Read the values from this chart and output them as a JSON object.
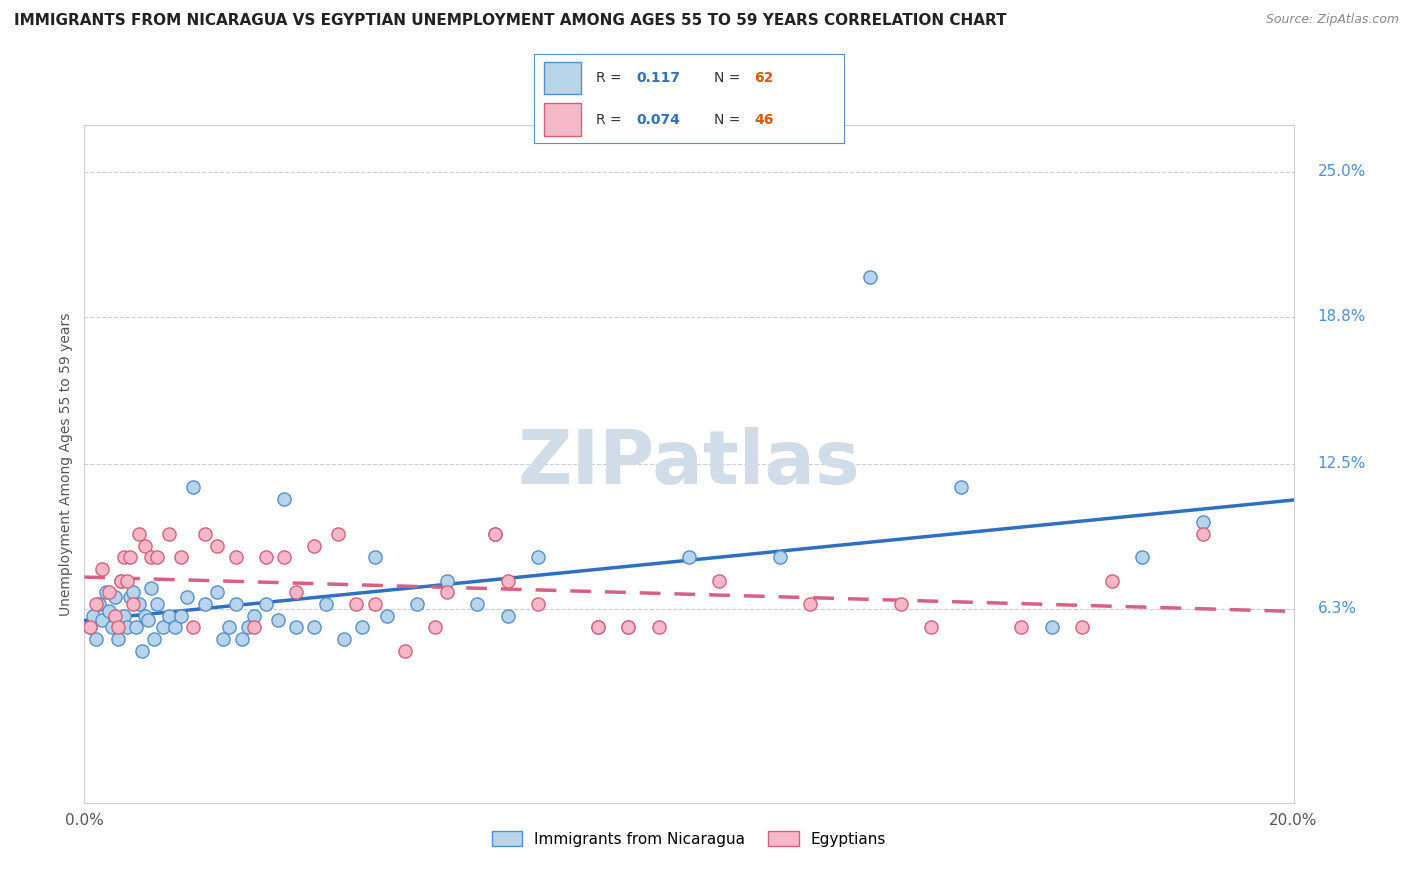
{
  "title": "IMMIGRANTS FROM NICARAGUA VS EGYPTIAN UNEMPLOYMENT AMONG AGES 55 TO 59 YEARS CORRELATION CHART",
  "source": "Source: ZipAtlas.com",
  "ylabel": "Unemployment Among Ages 55 to 59 years",
  "xlim": [
    0.0,
    20.0
  ],
  "ylim": [
    -2.0,
    27.0
  ],
  "yticks": [
    6.3,
    12.5,
    18.8,
    25.0
  ],
  "ytick_labels": [
    "6.3%",
    "12.5%",
    "18.8%",
    "25.0%"
  ],
  "series1_label": "Immigrants from Nicaragua",
  "series1_color": "#b8d4ea",
  "series1_edge": "#5590cc",
  "series1_R": "0.117",
  "series1_N": "62",
  "series2_label": "Egyptians",
  "series2_color": "#f5b8c8",
  "series2_edge": "#d8607a",
  "series2_R": "0.074",
  "series2_N": "46",
  "trend1_color": "#3070c0",
  "trend2_color": "#d86080",
  "background_color": "#ffffff",
  "grid_color": "#ccccdd",
  "watermark": "ZIPatlas",
  "watermark_color": "#d0dde8",
  "series1_x": [
    0.1,
    0.15,
    0.2,
    0.25,
    0.3,
    0.35,
    0.4,
    0.45,
    0.5,
    0.55,
    0.6,
    0.65,
    0.7,
    0.75,
    0.8,
    0.85,
    0.9,
    0.95,
    1.0,
    1.05,
    1.1,
    1.15,
    1.2,
    1.3,
    1.4,
    1.5,
    1.6,
    1.7,
    1.8,
    2.0,
    2.2,
    2.4,
    2.5,
    2.6,
    2.8,
    3.0,
    3.2,
    3.5,
    3.8,
    4.0,
    4.3,
    4.6,
    5.0,
    5.5,
    6.0,
    6.5,
    7.0,
    7.5,
    8.5,
    9.0,
    10.0,
    11.5,
    13.0,
    14.5,
    16.0,
    17.5,
    2.3,
    2.7,
    3.3,
    4.8,
    6.8,
    18.5
  ],
  "series1_y": [
    5.5,
    6.0,
    5.0,
    6.5,
    5.8,
    7.0,
    6.2,
    5.5,
    6.8,
    5.0,
    7.5,
    6.0,
    5.5,
    6.8,
    7.0,
    5.5,
    6.5,
    4.5,
    6.0,
    5.8,
    7.2,
    5.0,
    6.5,
    5.5,
    6.0,
    5.5,
    6.0,
    6.8,
    11.5,
    6.5,
    7.0,
    5.5,
    6.5,
    5.0,
    6.0,
    6.5,
    5.8,
    5.5,
    5.5,
    6.5,
    5.0,
    5.5,
    6.0,
    6.5,
    7.5,
    6.5,
    6.0,
    8.5,
    5.5,
    5.5,
    8.5,
    8.5,
    20.5,
    11.5,
    5.5,
    8.5,
    5.0,
    5.5,
    11.0,
    8.5,
    9.5,
    10.0
  ],
  "series2_x": [
    0.1,
    0.2,
    0.3,
    0.4,
    0.5,
    0.55,
    0.6,
    0.65,
    0.7,
    0.75,
    0.8,
    0.9,
    1.0,
    1.1,
    1.2,
    1.4,
    1.6,
    1.8,
    2.0,
    2.2,
    2.5,
    2.8,
    3.0,
    3.3,
    3.8,
    4.2,
    4.8,
    5.3,
    6.0,
    6.8,
    7.5,
    8.5,
    9.5,
    10.5,
    12.0,
    14.0,
    15.5,
    17.0,
    18.5,
    3.5,
    4.5,
    5.8,
    7.0,
    9.0,
    13.5,
    16.5
  ],
  "series2_y": [
    5.5,
    6.5,
    8.0,
    7.0,
    6.0,
    5.5,
    7.5,
    8.5,
    7.5,
    8.5,
    6.5,
    9.5,
    9.0,
    8.5,
    8.5,
    9.5,
    8.5,
    5.5,
    9.5,
    9.0,
    8.5,
    5.5,
    8.5,
    8.5,
    9.0,
    9.5,
    6.5,
    4.5,
    7.0,
    9.5,
    6.5,
    5.5,
    5.5,
    7.5,
    6.5,
    5.5,
    5.5,
    7.5,
    9.5,
    7.0,
    6.5,
    5.5,
    7.5,
    5.5,
    6.5,
    5.5
  ]
}
